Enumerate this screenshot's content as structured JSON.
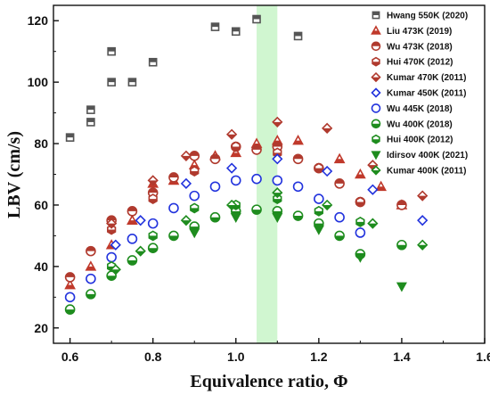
{
  "chart_data": {
    "type": "scatter",
    "xlabel": "Equivalence ratio, Φ",
    "ylabel": "LBV (cm/s)",
    "xlim": [
      0.56,
      1.6
    ],
    "ylim": [
      15,
      125
    ],
    "xticks": [
      "0.6",
      "0.8",
      "1.0",
      "1.2",
      "1.4",
      "1.6"
    ],
    "yticks": [
      "20",
      "40",
      "60",
      "80",
      "100",
      "120"
    ],
    "grid": false,
    "legend_position": "top-right",
    "highlight_band": {
      "x_range": [
        1.05,
        1.1
      ],
      "color": "#c8f5c8"
    },
    "series": [
      {
        "name": "Hwang 550K (2020)",
        "marker": "square",
        "color": "#555555",
        "points": [
          [
            0.6,
            82
          ],
          [
            0.65,
            87
          ],
          [
            0.65,
            91
          ],
          [
            0.7,
            100
          ],
          [
            0.7,
            110
          ],
          [
            0.75,
            100
          ],
          [
            0.8,
            106.5
          ],
          [
            0.95,
            118
          ],
          [
            1.0,
            116.5
          ],
          [
            1.05,
            120.5
          ],
          [
            1.15,
            115
          ]
        ]
      },
      {
        "name": "Liu 473K (2019)",
        "marker": "triangle-up",
        "color": "#c0392b",
        "points": [
          [
            0.6,
            34
          ],
          [
            0.65,
            40
          ],
          [
            0.7,
            47
          ],
          [
            0.75,
            55
          ],
          [
            0.8,
            67
          ],
          [
            0.85,
            68
          ],
          [
            0.9,
            73
          ],
          [
            0.95,
            76
          ],
          [
            1.0,
            77
          ],
          [
            1.05,
            80
          ],
          [
            1.1,
            81
          ],
          [
            1.15,
            81
          ],
          [
            1.25,
            75
          ],
          [
            1.3,
            70
          ],
          [
            1.35,
            66
          ],
          [
            1.4,
            60
          ]
        ]
      },
      {
        "name": "Wu 473K (2018)",
        "marker": "circle-top-half",
        "color": "#b03a2e",
        "points": [
          [
            0.6,
            36.5
          ],
          [
            0.65,
            45
          ],
          [
            0.7,
            55
          ],
          [
            0.75,
            58
          ],
          [
            0.8,
            64
          ],
          [
            0.85,
            69
          ],
          [
            0.9,
            76
          ],
          [
            0.95,
            75
          ],
          [
            1.0,
            79
          ],
          [
            1.05,
            78
          ],
          [
            1.1,
            79
          ],
          [
            1.15,
            75
          ],
          [
            1.2,
            72
          ],
          [
            1.25,
            67
          ],
          [
            1.3,
            61
          ],
          [
            1.4,
            60
          ]
        ]
      },
      {
        "name": "Hui 470K (2012)",
        "marker": "hexagon-half",
        "color": "#b03a2e",
        "points": [
          [
            0.7,
            52
          ],
          [
            0.8,
            62
          ],
          [
            0.9,
            71
          ],
          [
            1.0,
            79
          ],
          [
            1.1,
            77
          ],
          [
            1.2,
            72
          ],
          [
            1.3,
            61
          ]
        ]
      },
      {
        "name": "Kumar 470K (2011)",
        "marker": "diamond-half",
        "color": "#b03a2e",
        "points": [
          [
            0.7,
            54
          ],
          [
            0.8,
            68
          ],
          [
            0.88,
            76
          ],
          [
            0.99,
            83
          ],
          [
            1.1,
            87
          ],
          [
            1.22,
            85
          ],
          [
            1.33,
            73
          ],
          [
            1.45,
            63
          ]
        ]
      },
      {
        "name": "Kumar 450K (2011)",
        "marker": "diamond-open",
        "color": "#2233dd",
        "points": [
          [
            0.71,
            47
          ],
          [
            0.77,
            55
          ],
          [
            0.88,
            67
          ],
          [
            0.99,
            72
          ],
          [
            1.1,
            75
          ],
          [
            1.22,
            71
          ],
          [
            1.33,
            65
          ],
          [
            1.45,
            55
          ]
        ]
      },
      {
        "name": "Wu 445K (2018)",
        "marker": "circle-open",
        "color": "#2233dd",
        "points": [
          [
            0.6,
            30
          ],
          [
            0.65,
            36
          ],
          [
            0.7,
            43
          ],
          [
            0.75,
            49
          ],
          [
            0.8,
            54
          ],
          [
            0.85,
            59
          ],
          [
            0.9,
            63
          ],
          [
            0.95,
            66
          ],
          [
            1.0,
            68
          ],
          [
            1.05,
            68.5
          ],
          [
            1.1,
            68
          ],
          [
            1.15,
            66
          ],
          [
            1.2,
            62
          ],
          [
            1.25,
            56
          ],
          [
            1.3,
            51
          ]
        ]
      },
      {
        "name": "Wu 400K (2018)",
        "marker": "circle-half",
        "color": "#1e8c1e",
        "points": [
          [
            0.6,
            26
          ],
          [
            0.65,
            31
          ],
          [
            0.7,
            37
          ],
          [
            0.75,
            42
          ],
          [
            0.8,
            46
          ],
          [
            0.85,
            50
          ],
          [
            0.9,
            53
          ],
          [
            0.95,
            56
          ],
          [
            1.0,
            58
          ],
          [
            1.05,
            58.5
          ],
          [
            1.1,
            58
          ],
          [
            1.15,
            56.5
          ],
          [
            1.2,
            54
          ],
          [
            1.25,
            50
          ],
          [
            1.3,
            44
          ],
          [
            1.4,
            47
          ]
        ]
      },
      {
        "name": "Hui 400K (2012)",
        "marker": "hexagon-half",
        "color": "#1e8c1e",
        "points": [
          [
            0.7,
            40
          ],
          [
            0.8,
            50
          ],
          [
            0.9,
            59
          ],
          [
            1.0,
            60
          ],
          [
            1.1,
            62
          ],
          [
            1.2,
            58
          ],
          [
            1.3,
            54.5
          ]
        ]
      },
      {
        "name": "Idirsov 400K (2021)",
        "marker": "triangle-down",
        "color": "#1e8c1e",
        "points": [
          [
            0.9,
            51
          ],
          [
            1.0,
            56
          ],
          [
            1.1,
            56
          ],
          [
            1.2,
            52
          ],
          [
            1.3,
            43
          ],
          [
            1.4,
            33.5
          ]
        ]
      },
      {
        "name": "Kumar 400K (2011)",
        "marker": "diamond-half",
        "color": "#1e8c1e",
        "points": [
          [
            0.71,
            39
          ],
          [
            0.77,
            45
          ],
          [
            0.88,
            55
          ],
          [
            0.99,
            60
          ],
          [
            1.1,
            64
          ],
          [
            1.22,
            60
          ],
          [
            1.33,
            54
          ],
          [
            1.45,
            47
          ]
        ]
      }
    ]
  }
}
